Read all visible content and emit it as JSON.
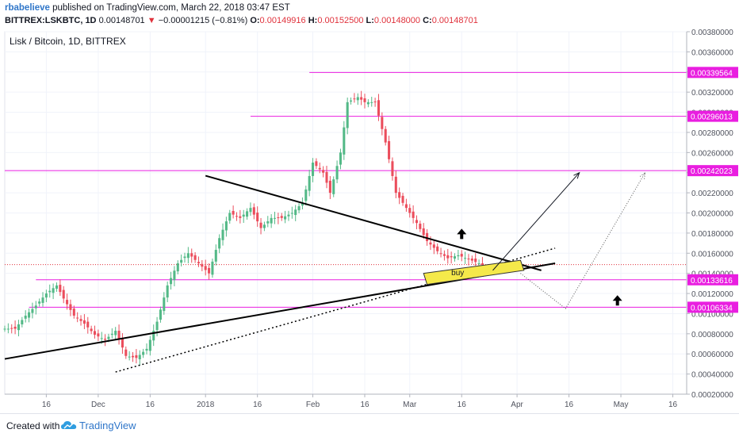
{
  "header": {
    "author": "rbabelieve",
    "published": " published on TradingView.com, March 22, 2018 03:47 EST",
    "symbol": "BITTREX:LSKBTC, 1D",
    "last": "0.00148701",
    "change_arrow": "▼",
    "change": "−0.00001215 (−0.81%)",
    "o_label": "O:",
    "o": "0.00149916",
    "h_label": "H:",
    "h": "0.00152500",
    "l_label": "L:",
    "l": "0.00148000",
    "c_label": "C:",
    "c": "0.00148701"
  },
  "footer": {
    "created_with": "Created with",
    "brand": "TradingView"
  },
  "chart_data": {
    "type": "candlestick",
    "title": "Lisk / Bitcoin, 1D, BITTREX",
    "ylim": [
      0.0002,
      0.0038
    ],
    "y_ticks": [
      "0.00020000",
      "0.00040000",
      "0.00060000",
      "0.00080000",
      "0.00100000",
      "0.00120000",
      "0.00140000",
      "0.00160000",
      "0.00180000",
      "0.00200000",
      "0.00220000",
      "0.00240000",
      "0.00260000",
      "0.00280000",
      "0.00300000",
      "0.00320000",
      "0.00340000",
      "0.00360000",
      "0.00380000"
    ],
    "y_tick_values": [
      0.0002,
      0.0004,
      0.0006,
      0.0008,
      0.001,
      0.0012,
      0.0014,
      0.0016,
      0.0018,
      0.002,
      0.0022,
      0.0024,
      0.0026,
      0.0028,
      0.003,
      0.0032,
      0.0034,
      0.0036,
      0.0038
    ],
    "x_range": [
      "2017-11-04",
      "2018-05-20"
    ],
    "x_ticks": [
      {
        "label": "16",
        "date": "2017-11-16"
      },
      {
        "label": "Dec",
        "date": "2017-12-01"
      },
      {
        "label": "16",
        "date": "2017-12-16"
      },
      {
        "label": "2018",
        "date": "2018-01-01"
      },
      {
        "label": "16",
        "date": "2018-01-16"
      },
      {
        "label": "Feb",
        "date": "2018-02-01"
      },
      {
        "label": "16",
        "date": "2018-02-16"
      },
      {
        "label": "Mar",
        "date": "2018-03-01"
      },
      {
        "label": "16",
        "date": "2018-03-16"
      },
      {
        "label": "Apr",
        "date": "2018-04-01"
      },
      {
        "label": "16",
        "date": "2018-04-16"
      },
      {
        "label": "May",
        "date": "2018-05-01"
      },
      {
        "label": "16",
        "date": "2018-05-16"
      }
    ],
    "series": [
      {
        "keypoints": [
          {
            "date": "2017-11-04",
            "price": 0.00085
          },
          {
            "date": "2017-11-07",
            "price": 0.00085
          },
          {
            "date": "2017-11-10",
            "price": 0.00098
          },
          {
            "date": "2017-11-13",
            "price": 0.00108
          },
          {
            "date": "2017-11-16",
            "price": 0.0012
          },
          {
            "date": "2017-11-19",
            "price": 0.00128
          },
          {
            "date": "2017-11-21",
            "price": 0.00115
          },
          {
            "date": "2017-11-24",
            "price": 0.00098
          },
          {
            "date": "2017-11-27",
            "price": 0.0009
          },
          {
            "date": "2017-11-30",
            "price": 0.00079
          },
          {
            "date": "2017-12-03",
            "price": 0.00074
          },
          {
            "date": "2017-12-06",
            "price": 0.00083
          },
          {
            "date": "2017-12-09",
            "price": 0.00058
          },
          {
            "date": "2017-12-12",
            "price": 0.00056
          },
          {
            "date": "2017-12-15",
            "price": 0.00065
          },
          {
            "date": "2017-12-18",
            "price": 0.00092
          },
          {
            "date": "2017-12-21",
            "price": 0.00128
          },
          {
            "date": "2017-12-24",
            "price": 0.0015
          },
          {
            "date": "2017-12-27",
            "price": 0.0016
          },
          {
            "date": "2017-12-30",
            "price": 0.0015
          },
          {
            "date": "2018-01-02",
            "price": 0.0014
          },
          {
            "date": "2018-01-05",
            "price": 0.00175
          },
          {
            "date": "2018-01-08",
            "price": 0.002
          },
          {
            "date": "2018-01-11",
            "price": 0.00195
          },
          {
            "date": "2018-01-14",
            "price": 0.00205
          },
          {
            "date": "2018-01-17",
            "price": 0.00185
          },
          {
            "date": "2018-01-20",
            "price": 0.00195
          },
          {
            "date": "2018-01-23",
            "price": 0.00195
          },
          {
            "date": "2018-01-26",
            "price": 0.002
          },
          {
            "date": "2018-01-29",
            "price": 0.0021
          },
          {
            "date": "2018-02-01",
            "price": 0.0025
          },
          {
            "date": "2018-02-04",
            "price": 0.0024
          },
          {
            "date": "2018-02-06",
            "price": 0.0022
          },
          {
            "date": "2018-02-09",
            "price": 0.0026
          },
          {
            "date": "2018-02-11",
            "price": 0.0031
          },
          {
            "date": "2018-02-14",
            "price": 0.00315
          },
          {
            "date": "2018-02-16",
            "price": 0.0031
          },
          {
            "date": "2018-02-19",
            "price": 0.0031
          },
          {
            "date": "2018-02-22",
            "price": 0.0027
          },
          {
            "date": "2018-02-25",
            "price": 0.0022
          },
          {
            "date": "2018-02-28",
            "price": 0.00205
          },
          {
            "date": "2018-03-03",
            "price": 0.0019
          },
          {
            "date": "2018-03-06",
            "price": 0.00172
          },
          {
            "date": "2018-03-09",
            "price": 0.00162
          },
          {
            "date": "2018-03-12",
            "price": 0.00155
          },
          {
            "date": "2018-03-15",
            "price": 0.00158
          },
          {
            "date": "2018-03-18",
            "price": 0.00154
          },
          {
            "date": "2018-03-21",
            "price": 0.0015
          },
          {
            "date": "2018-03-22",
            "price": 0.00148701
          }
        ]
      }
    ],
    "horizontal_levels": [
      {
        "value": 0.00339564,
        "label": "0.00339564",
        "start": "2018-01-31"
      },
      {
        "value": 0.00296013,
        "label": "0.00296013",
        "start": "2018-01-14"
      },
      {
        "value": 0.00242023,
        "label": "0.00242023",
        "start": "2017-11-04"
      },
      {
        "value": 0.00133616,
        "label": "0.00133616",
        "start": "2017-11-13"
      },
      {
        "value": 0.00106334,
        "label": "0.00106334",
        "start": "2017-11-11"
      }
    ],
    "current_price": 0.00148701,
    "trendlines": [
      {
        "style": "solid",
        "from": {
          "date": "2018-01-01",
          "price": 0.00237
        },
        "to": {
          "date": "2018-04-08",
          "price": 0.00143
        }
      },
      {
        "style": "solid",
        "from": {
          "date": "2017-11-04",
          "price": 0.00055
        },
        "to": {
          "date": "2018-04-12",
          "price": 0.0015
        }
      },
      {
        "style": "dotted",
        "from": {
          "date": "2017-12-06",
          "price": 0.00042
        },
        "to": {
          "date": "2018-04-12",
          "price": 0.00165
        }
      }
    ],
    "buy_zone": {
      "label": "buy",
      "corners": [
        {
          "date": "2018-03-05",
          "price": 0.0014
        },
        {
          "date": "2018-04-02",
          "price": 0.00153
        },
        {
          "date": "2018-04-03",
          "price": 0.00143
        },
        {
          "date": "2018-03-06",
          "price": 0.00129
        }
      ]
    },
    "projections": [
      {
        "style": "solid",
        "from": {
          "date": "2018-03-25",
          "price": 0.00143
        },
        "to": {
          "date": "2018-04-19",
          "price": 0.0024
        }
      },
      {
        "style": "dotted",
        "points": [
          {
            "date": "2018-04-02",
            "price": 0.0014
          },
          {
            "date": "2018-04-15",
            "price": 0.00105
          },
          {
            "date": "2018-05-08",
            "price": 0.0024
          }
        ]
      }
    ],
    "up_arrows": [
      {
        "date": "2018-03-16",
        "price": 0.00178
      },
      {
        "date": "2018-04-30",
        "price": 0.00112
      }
    ]
  }
}
